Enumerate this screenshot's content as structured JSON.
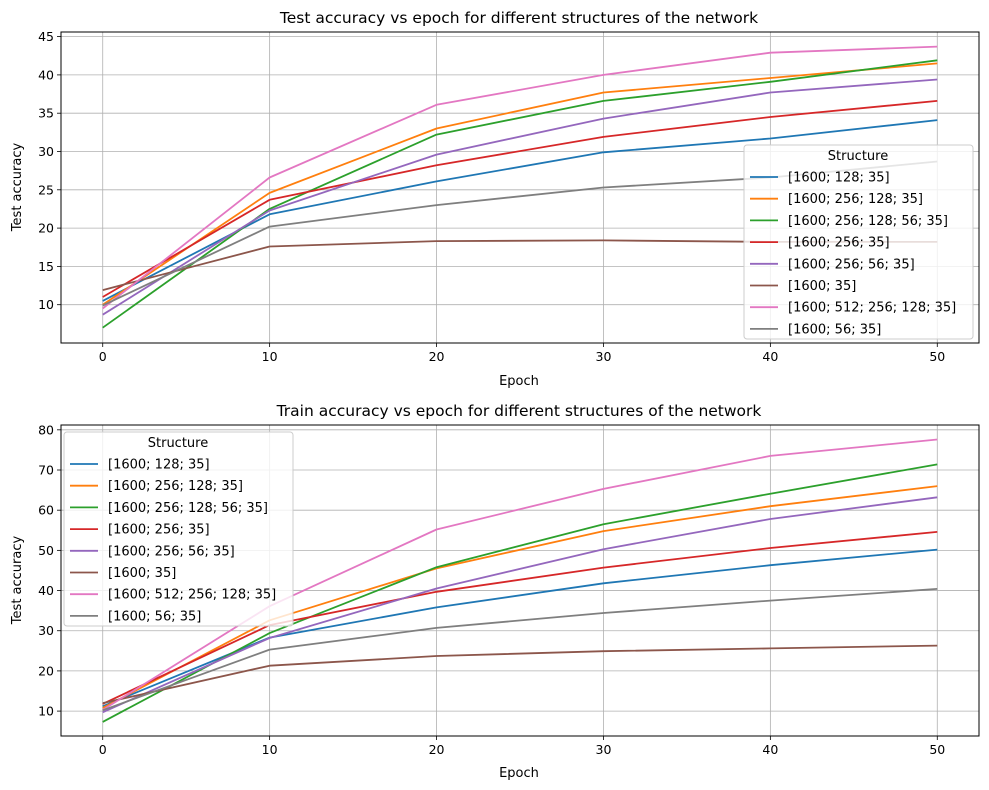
{
  "chart_data": [
    {
      "type": "line",
      "title": "Test accuracy vs epoch for different structures of the network",
      "xlabel": "Epoch",
      "ylabel": "Test accuracy",
      "x": [
        0,
        10,
        20,
        30,
        40,
        50
      ],
      "xlim": [
        -2.5,
        52.5
      ],
      "ylim": [
        5.0,
        45.6
      ],
      "xticks": [
        0,
        10,
        20,
        30,
        40,
        50
      ],
      "yticks": [
        10,
        15,
        20,
        25,
        30,
        35,
        40,
        45
      ],
      "grid": true,
      "legend": {
        "title": "Structure",
        "position": "center-right"
      },
      "series": [
        {
          "name": "[1600; 128; 35]",
          "color": "#1f77b4",
          "values": [
            10.5,
            21.8,
            26.1,
            29.9,
            31.7,
            34.1
          ]
        },
        {
          "name": "[1600; 256; 128; 35]",
          "color": "#ff7f0e",
          "values": [
            10.0,
            24.6,
            33.0,
            37.7,
            39.6,
            41.5
          ]
        },
        {
          "name": "[1600; 256; 128; 56; 35]",
          "color": "#2ca02c",
          "values": [
            7.0,
            22.5,
            32.2,
            36.6,
            39.1,
            41.9
          ]
        },
        {
          "name": "[1600; 256; 35]",
          "color": "#d62728",
          "values": [
            11.0,
            23.7,
            28.2,
            31.9,
            34.5,
            36.6
          ]
        },
        {
          "name": "[1600; 256; 56; 35]",
          "color": "#9467bd",
          "values": [
            8.7,
            22.3,
            29.6,
            34.3,
            37.7,
            39.4
          ]
        },
        {
          "name": "[1600; 35]",
          "color": "#8c564b",
          "values": [
            11.9,
            17.6,
            18.3,
            18.4,
            18.2,
            18.2
          ]
        },
        {
          "name": "[1600; 512; 256; 128; 35]",
          "color": "#e377c2",
          "values": [
            9.5,
            26.6,
            36.1,
            40.0,
            42.9,
            43.7
          ]
        },
        {
          "name": "[1600; 56; 35]",
          "color": "#7f7f7f",
          "values": [
            9.9,
            20.2,
            23.0,
            25.3,
            26.6,
            28.7
          ]
        }
      ]
    },
    {
      "type": "line",
      "title": "Train accuracy vs epoch for different structures of the network",
      "xlabel": "Epoch",
      "ylabel": "Test accuracy",
      "x": [
        0,
        10,
        20,
        30,
        40,
        50
      ],
      "xlim": [
        -2.5,
        52.5
      ],
      "ylim": [
        3.8,
        81.2
      ],
      "xticks": [
        0,
        10,
        20,
        30,
        40,
        50
      ],
      "yticks": [
        10,
        20,
        30,
        40,
        50,
        60,
        70,
        80
      ],
      "grid": true,
      "legend": {
        "title": "Structure",
        "position": "upper-left"
      },
      "series": [
        {
          "name": "[1600; 128; 35]",
          "color": "#1f77b4",
          "values": [
            11.2,
            28.3,
            35.8,
            41.8,
            46.3,
            50.2
          ]
        },
        {
          "name": "[1600; 256; 128; 35]",
          "color": "#ff7f0e",
          "values": [
            10.8,
            32.6,
            45.5,
            54.8,
            61.0,
            66.0
          ]
        },
        {
          "name": "[1600; 256; 128; 56; 35]",
          "color": "#2ca02c",
          "values": [
            7.3,
            29.4,
            45.8,
            56.5,
            64.1,
            71.4
          ]
        },
        {
          "name": "[1600; 256; 35]",
          "color": "#d62728",
          "values": [
            11.8,
            31.4,
            39.7,
            45.7,
            50.6,
            54.6
          ]
        },
        {
          "name": "[1600; 256; 56; 35]",
          "color": "#9467bd",
          "values": [
            9.7,
            28.2,
            40.5,
            50.3,
            57.8,
            63.2
          ]
        },
        {
          "name": "[1600; 35]",
          "color": "#8c564b",
          "values": [
            12.0,
            21.3,
            23.7,
            24.9,
            25.6,
            26.3
          ]
        },
        {
          "name": "[1600; 512; 256; 128; 35]",
          "color": "#e377c2",
          "values": [
            10.3,
            36.1,
            55.2,
            65.3,
            73.5,
            77.6
          ]
        },
        {
          "name": "[1600; 56; 35]",
          "color": "#7f7f7f",
          "values": [
            10.2,
            25.3,
            30.7,
            34.4,
            37.5,
            40.4
          ]
        }
      ]
    }
  ]
}
